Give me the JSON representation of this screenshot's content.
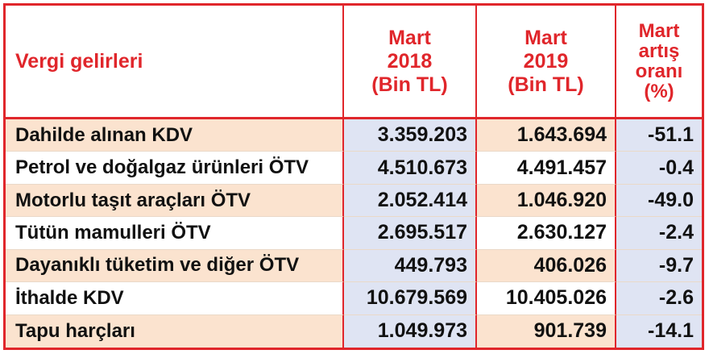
{
  "chart_data": {
    "type": "table",
    "columns": [
      "Vergi gelirleri",
      "Mart 2018 (Bin TL)",
      "Mart 2019 (Bin TL)",
      "Mart artış oranı (%)"
    ],
    "header": {
      "label": "Vergi gelirleri",
      "col1": [
        "Mart",
        "2018",
        "(Bin TL)"
      ],
      "col2": [
        "Mart",
        "2019",
        "(Bin TL)"
      ],
      "col3": [
        "Mart",
        "artış",
        "oranı",
        "(%)"
      ]
    },
    "rows": [
      {
        "name": "Dahilde alınan KDV",
        "mart_2018": "3.359.203",
        "mart_2019": "1.643.694",
        "artis": "-51.1"
      },
      {
        "name": "Petrol ve doğalgaz ürünleri ÖTV",
        "mart_2018": "4.510.673",
        "mart_2019": "4.491.457",
        "artis": "-0.4"
      },
      {
        "name": "Motorlu taşıt araçları ÖTV",
        "mart_2018": "2.052.414",
        "mart_2019": "1.046.920",
        "artis": "-49.0"
      },
      {
        "name": "Tütün mamulleri ÖTV",
        "mart_2018": "2.695.517",
        "mart_2019": "2.630.127",
        "artis": "-2.4"
      },
      {
        "name": "Dayanıklı tüketim ve diğer ÖTV",
        "mart_2018": "449.793",
        "mart_2019": "406.026",
        "artis": "-9.7"
      },
      {
        "name": "İthalde KDV",
        "mart_2018": "10.679.569",
        "mart_2019": "10.405.026",
        "artis": "-2.6"
      },
      {
        "name": "Tapu harçları",
        "mart_2018": "1.049.973",
        "mart_2019": "901.739",
        "artis": "-14.1"
      }
    ]
  },
  "colors": {
    "accent_red": "#e0262b",
    "row_peach": "#fbe3cf",
    "col_blue": "#dfe4f3",
    "text": "#111111"
  }
}
